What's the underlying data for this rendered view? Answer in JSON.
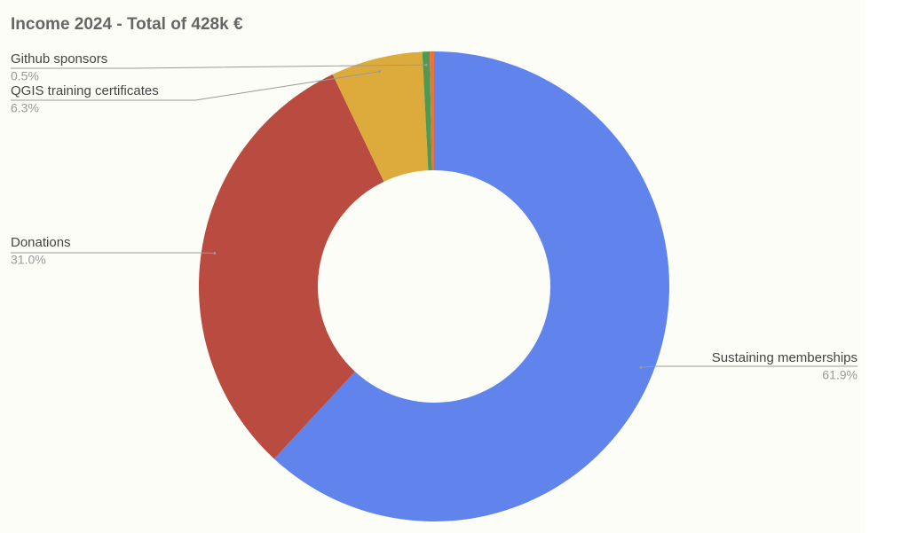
{
  "chart_data": {
    "type": "donut",
    "title": "Income 2024 - Total of 428k €",
    "categories": [
      "Sustaining memberships",
      "Donations",
      "QGIS training certificates",
      "Github sponsors",
      null
    ],
    "values": [
      61.9,
      31.0,
      6.3,
      0.5,
      0.3
    ],
    "value_labels": [
      "61.9%",
      "31.0%",
      "6.3%",
      "0.5%",
      null
    ],
    "colors": [
      "#6084ec",
      "#b94b40",
      "#dcab3b",
      "#4f9a52",
      "#e8743b"
    ]
  }
}
